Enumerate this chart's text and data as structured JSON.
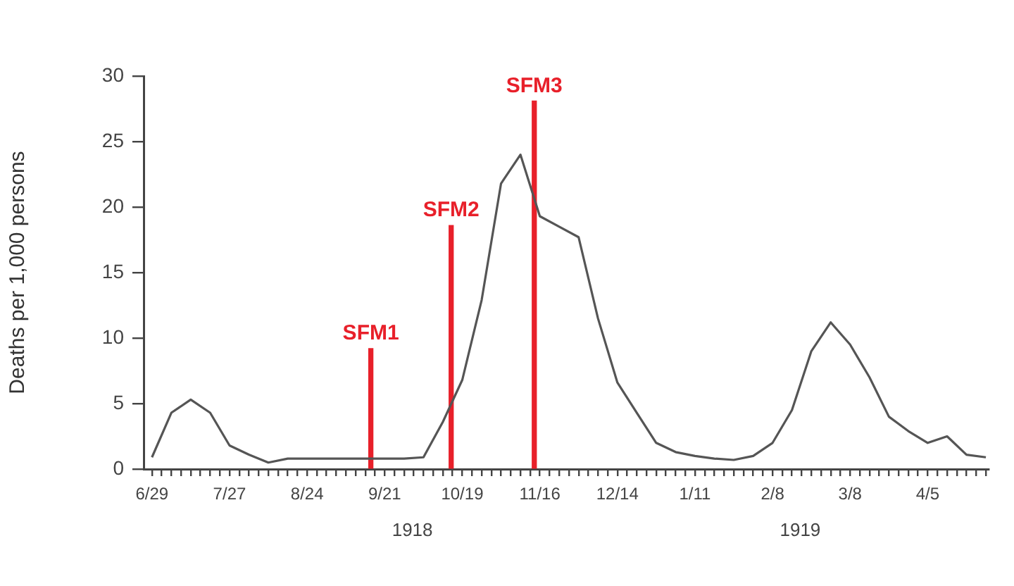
{
  "chart_data": {
    "type": "line",
    "ylabel": "Deaths per 1,000 persons",
    "x": [
      "1918-06-29",
      "1918-07-06",
      "1918-07-13",
      "1918-07-20",
      "1918-07-27",
      "1918-08-03",
      "1918-08-10",
      "1918-08-17",
      "1918-08-24",
      "1918-08-31",
      "1918-09-07",
      "1918-09-14",
      "1918-09-21",
      "1918-09-28",
      "1918-10-05",
      "1918-10-12",
      "1918-10-19",
      "1918-10-26",
      "1918-11-02",
      "1918-11-09",
      "1918-11-16",
      "1918-11-23",
      "1918-11-30",
      "1918-12-07",
      "1918-12-14",
      "1918-12-21",
      "1918-12-28",
      "1919-01-04",
      "1919-01-11",
      "1919-01-18",
      "1919-01-25",
      "1919-02-01",
      "1919-02-08",
      "1919-02-15",
      "1919-02-22",
      "1919-03-01",
      "1919-03-08",
      "1919-03-15",
      "1919-03-22",
      "1919-03-29",
      "1919-04-05",
      "1919-04-12",
      "1919-04-19",
      "1919-04-26"
    ],
    "series": [
      {
        "color": "#555555",
        "values": [
          0.9,
          4.3,
          5.3,
          4.3,
          1.8,
          1.1,
          0.5,
          0.8,
          0.8,
          0.8,
          0.8,
          0.8,
          0.8,
          0.8,
          0.9,
          3.6,
          6.8,
          12.9,
          21.8,
          24,
          19.3,
          18.5,
          17.7,
          11.5,
          6.6,
          4.3,
          2.0,
          1.3,
          1.0,
          0.8,
          0.7,
          1.0,
          2.0,
          4.5,
          9.0,
          11.2,
          9.5,
          7.0,
          4.0,
          2.9,
          2.0,
          2.5,
          1.1,
          0.9
        ]
      },
      {
        "type": "bar",
        "color": "#e8202a",
        "x": [
          "1918-09-16",
          "1918-10-15",
          "1918-11-14"
        ],
        "values": [
          9.2,
          18.6,
          28.1
        ],
        "value_labels": [
          "SFM1",
          "SFM2",
          "SFM3"
        ]
      }
    ],
    "xlim": [
      "1918-06-26",
      "1919-04-27"
    ],
    "xticks": [
      {
        "value": "1918-06-29",
        "label": "6/29"
      },
      {
        "value": "1918-07-02T12:00",
        "label": null
      },
      {
        "value": "1918-07-06",
        "label": null
      },
      {
        "value": "1918-07-09T12:00",
        "label": null
      },
      {
        "value": "1918-07-13",
        "label": null
      },
      {
        "value": "1918-07-16T12:00",
        "label": null
      },
      {
        "value": "1918-07-20",
        "label": null
      },
      {
        "value": "1918-07-23T12:00",
        "label": null
      },
      {
        "value": "1918-07-27",
        "label": "7/27"
      },
      {
        "value": "1918-07-30T12:00",
        "label": null
      },
      {
        "value": "1918-08-03",
        "label": null
      },
      {
        "value": "1918-08-06T12:00",
        "label": null
      },
      {
        "value": "1918-08-10",
        "label": null
      },
      {
        "value": "1918-08-13T12:00",
        "label": null
      },
      {
        "value": "1918-08-17",
        "label": null
      },
      {
        "value": "1918-08-20T12:00",
        "label": null
      },
      {
        "value": "1918-08-24",
        "label": "8/24"
      },
      {
        "value": "1918-08-27T12:00",
        "label": null
      },
      {
        "value": "1918-08-31",
        "label": null
      },
      {
        "value": "1918-09-03T12:00",
        "label": null
      },
      {
        "value": "1918-09-07",
        "label": null
      },
      {
        "value": "1918-09-10T12:00",
        "label": null
      },
      {
        "value": "1918-09-14",
        "label": null
      },
      {
        "value": "1918-09-17T12:00",
        "label": null
      },
      {
        "value": "1918-09-21",
        "label": "9/21"
      },
      {
        "value": "1918-09-24T12:00",
        "label": null
      },
      {
        "value": "1918-09-28",
        "label": null
      },
      {
        "value": "1918-10-01T12:00",
        "label": null
      },
      {
        "value": "1918-10-05",
        "label": null
      },
      {
        "value": "1918-10-08T12:00",
        "label": null
      },
      {
        "value": "1918-10-12",
        "label": null
      },
      {
        "value": "1918-10-15T12:00",
        "label": null
      },
      {
        "value": "1918-10-19",
        "label": "10/19"
      },
      {
        "value": "1918-10-22T12:00",
        "label": null
      },
      {
        "value": "1918-10-26",
        "label": null
      },
      {
        "value": "1918-10-29T12:00",
        "label": null
      },
      {
        "value": "1918-11-02",
        "label": null
      },
      {
        "value": "1918-11-05T12:00",
        "label": null
      },
      {
        "value": "1918-11-09",
        "label": null
      },
      {
        "value": "1918-11-12T12:00",
        "label": null
      },
      {
        "value": "1918-11-16",
        "label": "11/16"
      },
      {
        "value": "1918-11-19T12:00",
        "label": null
      },
      {
        "value": "1918-11-23",
        "label": null
      },
      {
        "value": "1918-11-26T12:00",
        "label": null
      },
      {
        "value": "1918-11-30",
        "label": null
      },
      {
        "value": "1918-12-03T12:00",
        "label": null
      },
      {
        "value": "1918-12-07",
        "label": null
      },
      {
        "value": "1918-12-10T12:00",
        "label": null
      },
      {
        "value": "1918-12-14",
        "label": "12/14"
      },
      {
        "value": "1918-12-17T12:00",
        "label": null
      },
      {
        "value": "1918-12-21",
        "label": null
      },
      {
        "value": "1918-12-24T12:00",
        "label": null
      },
      {
        "value": "1918-12-28",
        "label": null
      },
      {
        "value": "1918-12-31T12:00",
        "label": null
      },
      {
        "value": "1919-01-04",
        "label": null
      },
      {
        "value": "1919-01-07T12:00",
        "label": null
      },
      {
        "value": "1919-01-11",
        "label": "1/11"
      },
      {
        "value": "1919-01-14T12:00",
        "label": null
      },
      {
        "value": "1919-01-18",
        "label": null
      },
      {
        "value": "1919-01-21T12:00",
        "label": null
      },
      {
        "value": "1919-01-25",
        "label": null
      },
      {
        "value": "1919-01-28T12:00",
        "label": null
      },
      {
        "value": "1919-02-01",
        "label": null
      },
      {
        "value": "1919-02-04T12:00",
        "label": null
      },
      {
        "value": "1919-02-08",
        "label": "2/8"
      },
      {
        "value": "1919-02-11T12:00",
        "label": null
      },
      {
        "value": "1919-02-15",
        "label": null
      },
      {
        "value": "1919-02-18T12:00",
        "label": null
      },
      {
        "value": "1919-02-22",
        "label": null
      },
      {
        "value": "1919-02-25T12:00",
        "label": null
      },
      {
        "value": "1919-03-01",
        "label": null
      },
      {
        "value": "1919-03-04T12:00",
        "label": null
      },
      {
        "value": "1919-03-08",
        "label": "3/8"
      },
      {
        "value": "1919-03-11T12:00",
        "label": null
      },
      {
        "value": "1919-03-15",
        "label": null
      },
      {
        "value": "1919-03-18T12:00",
        "label": null
      },
      {
        "value": "1919-03-22",
        "label": null
      },
      {
        "value": "1919-03-25T12:00",
        "label": null
      },
      {
        "value": "1919-03-29",
        "label": null
      },
      {
        "value": "1919-04-01T12:00",
        "label": null
      },
      {
        "value": "1919-04-05",
        "label": "4/5"
      },
      {
        "value": "1919-04-08T12:00",
        "label": null
      },
      {
        "value": "1919-04-12",
        "label": null
      },
      {
        "value": "1919-04-15T12:00",
        "label": null
      },
      {
        "value": "1919-04-19",
        "label": null
      },
      {
        "value": "1919-04-22T12:00",
        "label": null
      },
      {
        "value": "1919-04-26",
        "label": null
      }
    ],
    "ylim": [
      0,
      30
    ],
    "yticks": [
      0,
      5,
      10,
      15,
      20,
      25,
      30
    ],
    "grid": false,
    "legend": false,
    "marker": "none",
    "line_style": "solid",
    "annotations": [
      "1918",
      "1919"
    ]
  }
}
